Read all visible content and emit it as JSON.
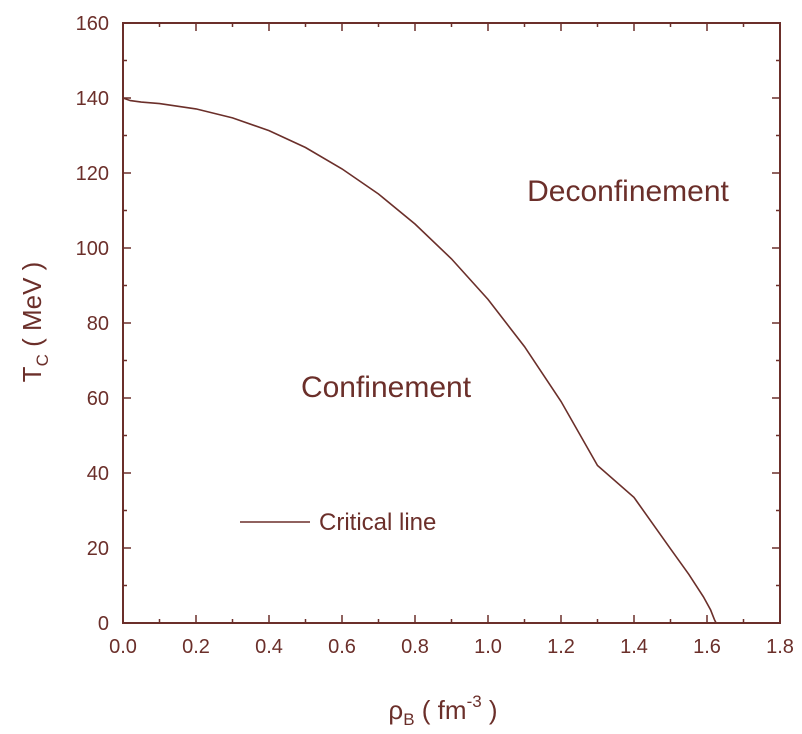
{
  "chart_data": {
    "type": "line",
    "title": "",
    "xlabel": {
      "symbol": "ρ",
      "sub": "B",
      "pre_unit": " ( fm",
      "sup": "-3",
      "post_unit": " )"
    },
    "ylabel": {
      "symbol": "T",
      "sub": "C",
      "unit": " ( MeV )"
    },
    "xlim": [
      0.0,
      1.8
    ],
    "ylim": [
      0,
      160
    ],
    "xticks": [
      "0.0",
      "0.2",
      "0.4",
      "0.6",
      "0.8",
      "1.0",
      "1.2",
      "1.4",
      "1.6",
      "1.8"
    ],
    "yticks": [
      "0",
      "20",
      "40",
      "60",
      "80",
      "100",
      "120",
      "140",
      "160"
    ],
    "grid": false,
    "legend_placement": "lower-left",
    "annotations": {
      "deconfinement": "Deconfinement",
      "confinement": "Confinement"
    },
    "series": [
      {
        "name": "Critical line",
        "color": "#6b2f2a",
        "x": [
          0.0,
          0.02,
          0.05,
          0.1,
          0.2,
          0.3,
          0.4,
          0.5,
          0.6,
          0.7,
          0.8,
          0.9,
          1.0,
          1.1,
          1.2,
          1.3,
          1.4,
          1.5,
          1.55,
          1.59,
          1.61,
          1.62,
          1.625
        ],
        "y": [
          140,
          139.3,
          138.9,
          138.5,
          137.1,
          134.7,
          131.3,
          126.8,
          121.1,
          114.4,
          106.4,
          97.1,
          86.3,
          73.7,
          59.1,
          42.0,
          33.5,
          19.8,
          13.0,
          7.0,
          3.5,
          1.0,
          0
        ]
      }
    ]
  }
}
